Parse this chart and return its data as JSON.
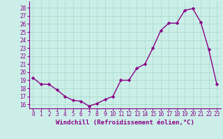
{
  "x": [
    0,
    1,
    2,
    3,
    4,
    5,
    6,
    7,
    8,
    9,
    10,
    11,
    12,
    13,
    14,
    15,
    16,
    17,
    18,
    19,
    20,
    21,
    22,
    23
  ],
  "y": [
    19.3,
    18.5,
    18.5,
    17.8,
    17.0,
    16.5,
    16.4,
    15.8,
    16.1,
    16.6,
    17.0,
    19.0,
    19.0,
    20.5,
    21.0,
    23.0,
    25.2,
    26.1,
    26.1,
    27.7,
    27.9,
    26.2,
    22.8,
    18.5
  ],
  "bg_color": "#cceee8",
  "grid_color": "#aaddcc",
  "xlabel": "Windchill (Refroidissement éolien,°C)",
  "ylim": [
    15.5,
    28.8
  ],
  "yticks": [
    16,
    17,
    18,
    19,
    20,
    21,
    22,
    23,
    24,
    25,
    26,
    27,
    28
  ],
  "xticks": [
    0,
    1,
    2,
    3,
    4,
    5,
    6,
    7,
    8,
    9,
    10,
    11,
    12,
    13,
    14,
    15,
    16,
    17,
    18,
    19,
    20,
    21,
    22,
    23
  ],
  "line_color": "#880088",
  "marker": "D",
  "marker_size": 2.2,
  "line_width": 1.0,
  "xlabel_fontsize": 6.5,
  "tick_fontsize": 5.5
}
